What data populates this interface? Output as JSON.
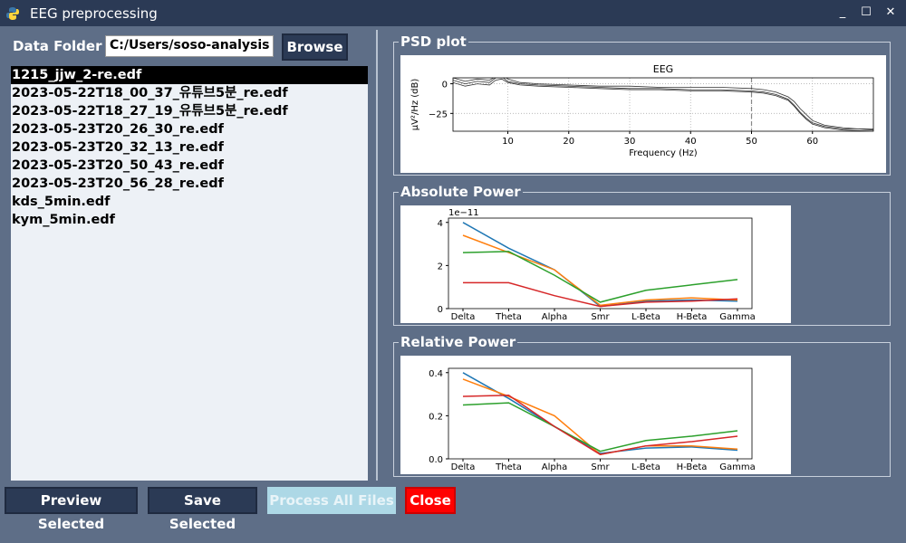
{
  "window": {
    "title": "EEG preprocessing",
    "minimize": "_",
    "maximize": "☐",
    "close": "✕"
  },
  "folder": {
    "label": "Data Folder",
    "value": "C:/Users/soso-analysis",
    "browse_label": "Browse"
  },
  "files": [
    "1215_jjw_2-re.edf",
    "2023-05-22T18_00_37_유튜브5분_re.edf",
    "2023-05-22T18_27_19_유튜브5분_re.edf",
    "2023-05-23T20_26_30_re.edf",
    "2023-05-23T20_32_13_re.edf",
    "2023-05-23T20_50_43_re.edf",
    "2023-05-23T20_56_28_re.edf",
    "kds_5min.edf",
    "kym_5min.edf"
  ],
  "selected_file_index": 0,
  "buttons": {
    "preview": "Preview Selected",
    "save": "Save Selected",
    "process": "Process All Files",
    "close": "Close"
  },
  "colors": {
    "series": [
      "#1f77b4",
      "#ff7f0e",
      "#2ca02c",
      "#d62728"
    ],
    "selected": "#000000",
    "close_button": "#ff0000",
    "process_button": "#add8e6"
  },
  "panels": {
    "psd_title": "PSD plot",
    "abs_title": "Absolute Power",
    "rel_title": "Relative Power"
  },
  "chart_data": [
    {
      "type": "line",
      "title": "EEG",
      "xlabel": "Frequency (Hz)",
      "ylabel": "μV²/Hz (dB)",
      "xlim": [
        1,
        70
      ],
      "ylim": [
        -40,
        5
      ],
      "xticks": [
        10,
        20,
        30,
        40,
        50,
        60
      ],
      "yticks": [
        0,
        -25
      ],
      "marker_line_x": 50,
      "grid": true,
      "series": [
        {
          "x": [
            1,
            3,
            5,
            7,
            8,
            9,
            10,
            12,
            15,
            20,
            25,
            30,
            35,
            40,
            45,
            50,
            52,
            54,
            56,
            57,
            58,
            59,
            60,
            62,
            65,
            70
          ],
          "values": [
            3,
            0,
            2,
            1,
            5,
            6,
            2,
            0,
            -1,
            -2,
            -3,
            -4,
            -4,
            -5,
            -5,
            -6,
            -7,
            -9,
            -13,
            -18,
            -24,
            -29,
            -33,
            -36,
            -38,
            -38
          ]
        },
        {
          "x": [
            1,
            3,
            5,
            7,
            8,
            9,
            10,
            12,
            15,
            20,
            25,
            30,
            35,
            40,
            45,
            50,
            52,
            54,
            56,
            57,
            58,
            59,
            60,
            62,
            65,
            70
          ],
          "values": [
            5,
            2,
            4,
            3,
            6,
            8,
            4,
            1,
            0,
            -1,
            -2,
            -2,
            -3,
            -3,
            -3,
            -4,
            -5,
            -7,
            -11,
            -15,
            -21,
            -26,
            -31,
            -35,
            -37,
            -39
          ]
        },
        {
          "x": [
            1,
            3,
            5,
            7,
            8,
            9,
            10,
            12,
            15,
            20,
            25,
            30,
            35,
            40,
            45,
            50,
            52,
            54,
            56,
            57,
            58,
            59,
            60,
            62,
            65,
            70
          ],
          "values": [
            1,
            -2,
            0,
            -1,
            3,
            4,
            1,
            -1,
            -2,
            -3,
            -4,
            -5,
            -5,
            -6,
            -6,
            -7,
            -8,
            -10,
            -14,
            -19,
            -25,
            -30,
            -34,
            -37,
            -39,
            -40
          ]
        }
      ]
    },
    {
      "type": "line",
      "title": "",
      "offset_label": "1e−11",
      "categories": [
        "Delta",
        "Theta",
        "Alpha",
        "Smr",
        "L-Beta",
        "H-Beta",
        "Gamma"
      ],
      "ylim": [
        0,
        4.2
      ],
      "yticks": [
        0,
        2,
        4
      ],
      "series": [
        {
          "values": [
            4.0,
            2.8,
            1.8,
            0.1,
            0.35,
            0.4,
            0.35
          ]
        },
        {
          "values": [
            3.4,
            2.6,
            1.8,
            0.15,
            0.4,
            0.5,
            0.4
          ]
        },
        {
          "values": [
            2.6,
            2.65,
            1.55,
            0.3,
            0.85,
            1.1,
            1.35
          ]
        },
        {
          "values": [
            1.2,
            1.2,
            0.6,
            0.1,
            0.3,
            0.35,
            0.45
          ]
        }
      ]
    },
    {
      "type": "line",
      "title": "",
      "categories": [
        "Delta",
        "Theta",
        "Alpha",
        "Smr",
        "L-Beta",
        "H-Beta",
        "Gamma"
      ],
      "ylim": [
        0,
        0.42
      ],
      "yticks": [
        0.0,
        0.2,
        0.4
      ],
      "series": [
        {
          "values": [
            0.4,
            0.28,
            0.15,
            0.025,
            0.05,
            0.055,
            0.04
          ]
        },
        {
          "values": [
            0.37,
            0.29,
            0.2,
            0.02,
            0.06,
            0.06,
            0.045
          ]
        },
        {
          "values": [
            0.25,
            0.26,
            0.15,
            0.035,
            0.085,
            0.105,
            0.13
          ]
        },
        {
          "values": [
            0.29,
            0.295,
            0.15,
            0.02,
            0.06,
            0.08,
            0.105
          ]
        }
      ]
    }
  ]
}
